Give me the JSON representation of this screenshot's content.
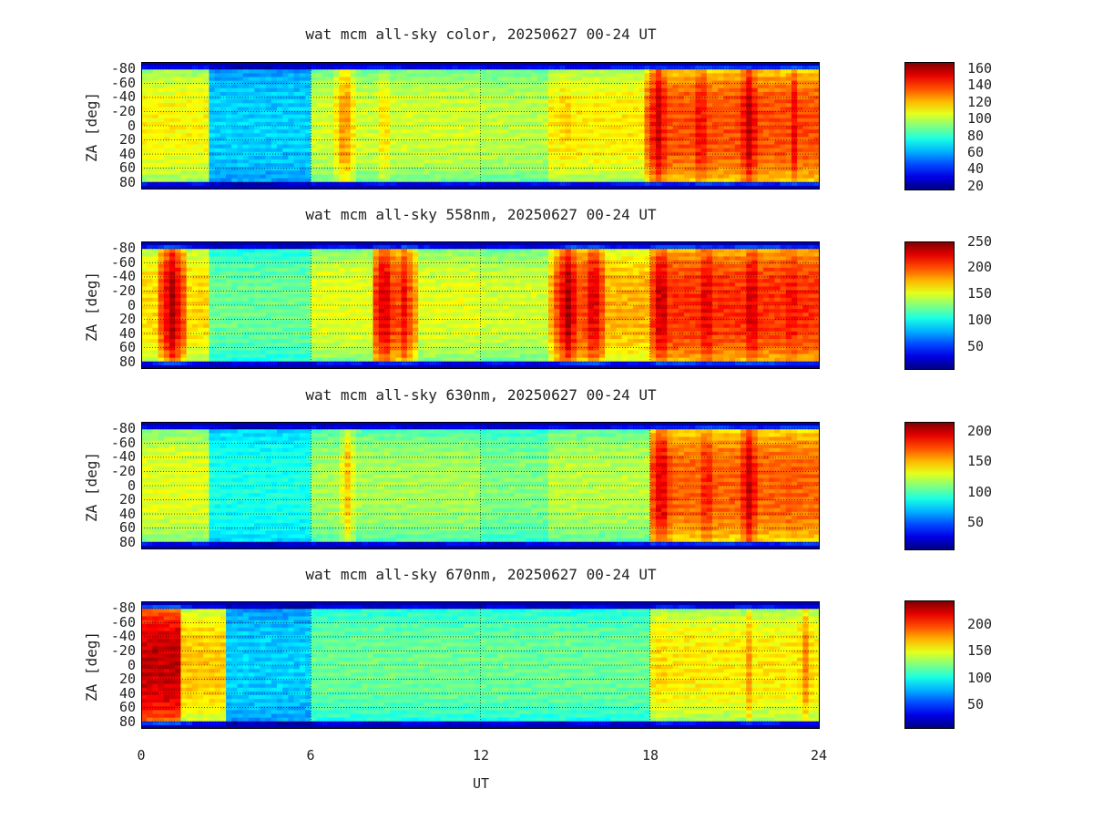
{
  "chart_data": [
    {
      "type": "heatmap",
      "title": "wat mcm all-sky color, 20250627 00-24 UT",
      "ylabel": "ZA [deg]",
      "xlim": [
        0,
        24
      ],
      "ylim": [
        -85,
        85
      ],
      "yticks": [
        "-80",
        "-60",
        "-40",
        "-20",
        "0",
        "20",
        "40",
        "60",
        "80"
      ],
      "colorbar": {
        "range": [
          15,
          168
        ],
        "ticks": [
          "160",
          "140",
          "120",
          "100",
          "80",
          "60",
          "40",
          "20"
        ]
      },
      "background_level": 0.5,
      "bands": [
        {
          "x": [
            0,
            2.5
          ],
          "level": 0.65
        },
        {
          "x": [
            2.5,
            6
          ],
          "level": 0.35
        },
        {
          "x": [
            6,
            12
          ],
          "level": 0.6
        },
        {
          "x": [
            12,
            14.5
          ],
          "level": 0.58
        },
        {
          "x": [
            14.5,
            18
          ],
          "level": 0.66
        },
        {
          "x": [
            18,
            24
          ],
          "level": 0.82
        }
      ],
      "peaks": [
        {
          "x": 7.2,
          "level": 0.78
        },
        {
          "x": 8.6,
          "level": 0.7
        },
        {
          "x": 15.0,
          "level": 0.72
        },
        {
          "x": 18.3,
          "level": 0.95
        },
        {
          "x": 19.8,
          "level": 0.92
        },
        {
          "x": 21.5,
          "level": 0.96
        },
        {
          "x": 23.1,
          "level": 0.9
        }
      ]
    },
    {
      "type": "heatmap",
      "title": "wat mcm all-sky 558nm, 20250627 00-24 UT",
      "ylabel": "ZA [deg]",
      "xlim": [
        0,
        24
      ],
      "ylim": [
        -85,
        85
      ],
      "yticks": [
        "-80",
        "-60",
        "-40",
        "-20",
        "0",
        "20",
        "40",
        "60",
        "80"
      ],
      "colorbar": {
        "range": [
          5,
          250
        ],
        "ticks": [
          "250",
          "200",
          "150",
          "100",
          "50"
        ]
      },
      "background_level": 0.55,
      "bands": [
        {
          "x": [
            0,
            2.5
          ],
          "level": 0.68
        },
        {
          "x": [
            2.5,
            6
          ],
          "level": 0.5
        },
        {
          "x": [
            6,
            12
          ],
          "level": 0.62
        },
        {
          "x": [
            12,
            14.5
          ],
          "level": 0.6
        },
        {
          "x": [
            14.5,
            18
          ],
          "level": 0.72
        },
        {
          "x": [
            18,
            24
          ],
          "level": 0.85
        }
      ],
      "peaks": [
        {
          "x": 1.1,
          "level": 0.98
        },
        {
          "x": 8.6,
          "level": 0.96
        },
        {
          "x": 9.3,
          "level": 0.9
        },
        {
          "x": 15.1,
          "level": 0.98
        },
        {
          "x": 16.0,
          "level": 0.95
        },
        {
          "x": 18.4,
          "level": 0.97
        },
        {
          "x": 20.0,
          "level": 0.95
        },
        {
          "x": 21.6,
          "level": 0.96
        },
        {
          "x": 23.0,
          "level": 0.92
        }
      ]
    },
    {
      "type": "heatmap",
      "title": "wat mcm all-sky 630nm, 20250627 00-24 UT",
      "ylabel": "ZA [deg]",
      "xlim": [
        0,
        24
      ],
      "ylim": [
        -85,
        85
      ],
      "yticks": [
        "-80",
        "-60",
        "-40",
        "-20",
        "0",
        "20",
        "40",
        "60",
        "80"
      ],
      "colorbar": {
        "range": [
          5,
          215
        ],
        "ticks": [
          "200",
          "150",
          "100",
          "50"
        ]
      },
      "background_level": 0.5,
      "bands": [
        {
          "x": [
            0,
            2.5
          ],
          "level": 0.62
        },
        {
          "x": [
            2.5,
            6
          ],
          "level": 0.42
        },
        {
          "x": [
            6,
            12
          ],
          "level": 0.56
        },
        {
          "x": [
            12,
            14.5
          ],
          "level": 0.52
        },
        {
          "x": [
            14.5,
            18
          ],
          "level": 0.58
        },
        {
          "x": [
            18,
            24
          ],
          "level": 0.8
        }
      ],
      "peaks": [
        {
          "x": 7.3,
          "level": 0.7
        },
        {
          "x": 18.4,
          "level": 0.95
        },
        {
          "x": 20.0,
          "level": 0.9
        },
        {
          "x": 21.5,
          "level": 0.95
        },
        {
          "x": 23.0,
          "level": 0.85
        }
      ]
    },
    {
      "type": "heatmap",
      "title": "wat mcm all-sky 670nm, 20250627 00-24 UT",
      "ylabel": "ZA [deg]",
      "xlim": [
        0,
        24
      ],
      "ylim": [
        -85,
        85
      ],
      "yticks": [
        "-80",
        "-60",
        "-40",
        "-20",
        "0",
        "20",
        "40",
        "60",
        "80"
      ],
      "colorbar": {
        "range": [
          5,
          245
        ],
        "ticks": [
          "200",
          "150",
          "100",
          "50"
        ]
      },
      "background_level": 0.45,
      "bands": [
        {
          "x": [
            0,
            1.5
          ],
          "level": 0.95
        },
        {
          "x": [
            1.5,
            3
          ],
          "level": 0.7
        },
        {
          "x": [
            3,
            6
          ],
          "level": 0.35
        },
        {
          "x": [
            6,
            18
          ],
          "level": 0.5
        },
        {
          "x": [
            18,
            24
          ],
          "level": 0.66
        }
      ],
      "peaks": [
        {
          "x": 0.4,
          "level": 0.98
        },
        {
          "x": 18.4,
          "level": 0.72
        },
        {
          "x": 21.5,
          "level": 0.74
        },
        {
          "x": 23.5,
          "level": 0.76
        }
      ]
    }
  ],
  "xaxis": {
    "label": "UT",
    "ticks": [
      "0",
      "6",
      "12",
      "18",
      "24"
    ]
  }
}
